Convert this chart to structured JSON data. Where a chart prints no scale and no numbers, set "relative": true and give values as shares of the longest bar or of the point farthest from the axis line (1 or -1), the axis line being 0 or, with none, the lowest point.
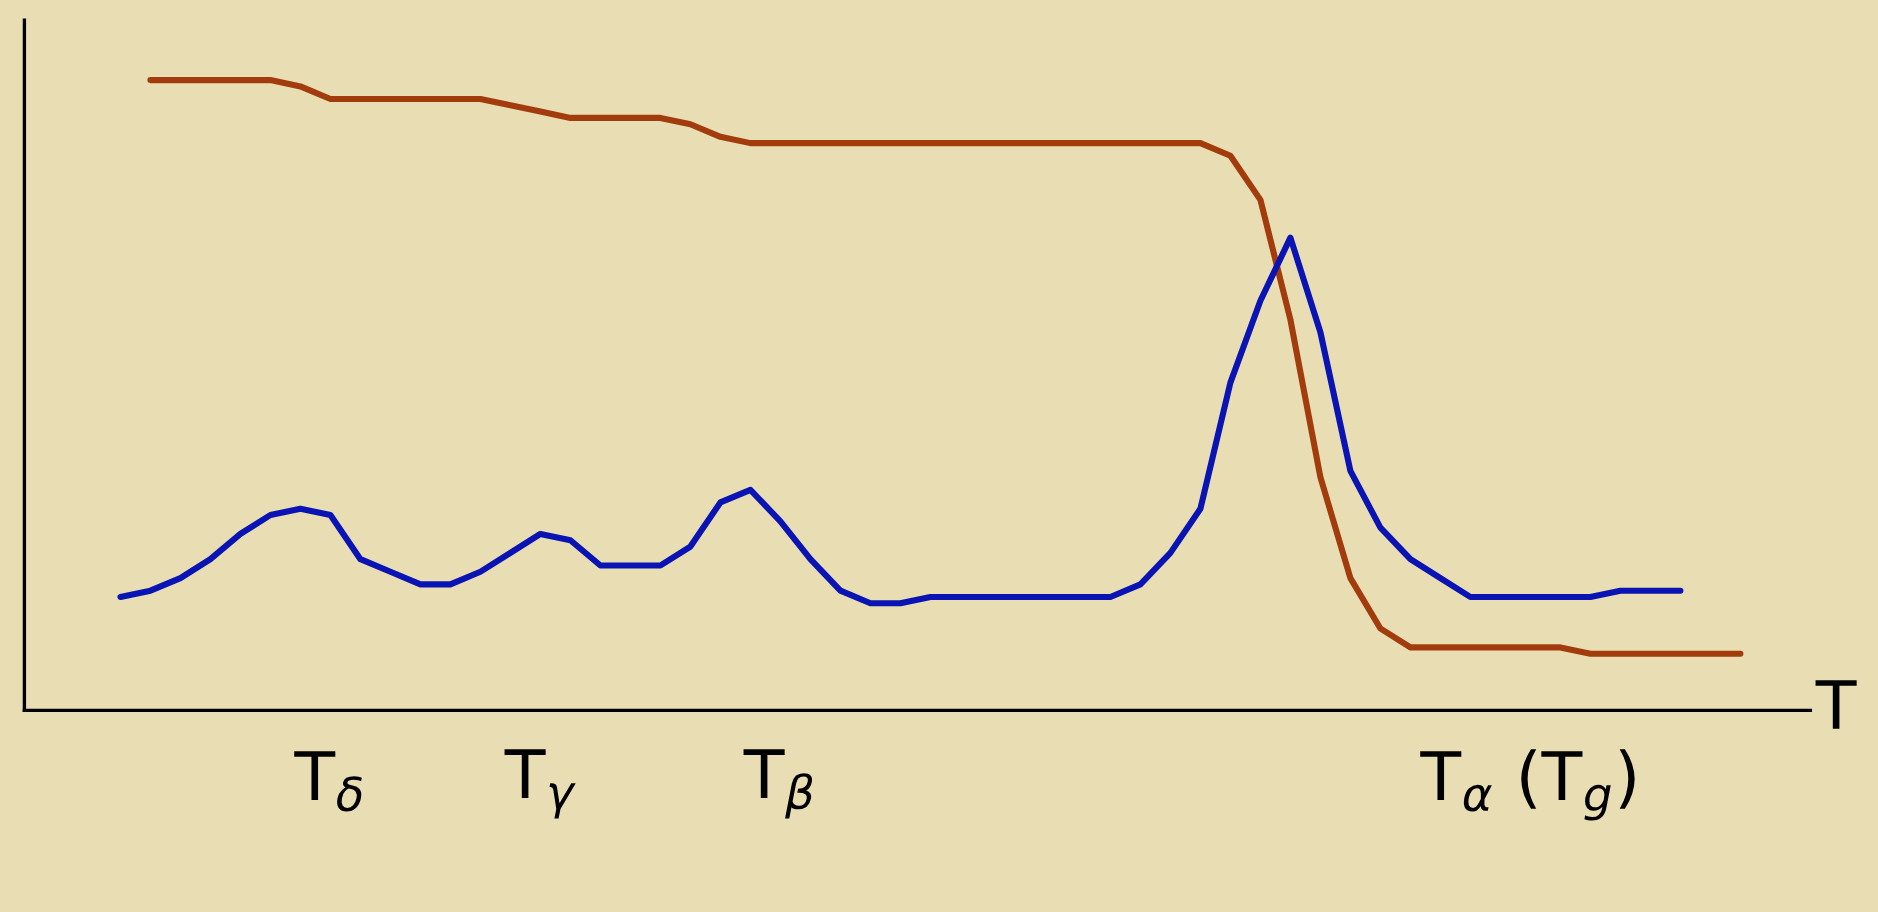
{
  "chart_data": {
    "type": "line",
    "relative": true,
    "xlabel": "T",
    "grid": false,
    "marker": "none",
    "line_style": "solid",
    "categories": [
      null,
      null,
      null,
      null,
      null,
      null,
      null,
      "T$_{δ}$",
      null,
      null,
      null,
      null,
      null,
      null,
      "T$_{γ}$",
      null,
      null,
      null,
      null,
      null,
      null,
      null,
      "T$_{β}$",
      null,
      null,
      null,
      null,
      null,
      null,
      null,
      null,
      null,
      null,
      null,
      null,
      null,
      null,
      null,
      null,
      null,
      null,
      null,
      null,
      null,
      null,
      null,
      null,
      "T$_{α}$ (T$_{g}$)",
      null,
      null,
      null,
      null,
      null,
      null,
      null
    ],
    "series": [
      {
        "color": "#a33c0c",
        "values": [
          null,
          1.0,
          1.0,
          1.0,
          1.0,
          1.0,
          0.99,
          0.97,
          0.97,
          0.97,
          0.97,
          0.97,
          0.97,
          0.96,
          0.95,
          0.94,
          0.94,
          0.94,
          0.94,
          0.93,
          0.91,
          0.9,
          0.9,
          0.9,
          0.9,
          0.9,
          0.9,
          0.9,
          0.9,
          0.9,
          0.9,
          0.9,
          0.9,
          0.9,
          0.9,
          0.9,
          0.9,
          0.88,
          0.81,
          0.62,
          0.37,
          0.21,
          0.13,
          0.1,
          0.1,
          0.1,
          0.1,
          0.1,
          0.1,
          0.09,
          0.09,
          0.09,
          0.09,
          0.09,
          0.09
        ]
      },
      {
        "color": "#0a14b4",
        "values": [
          0.18,
          0.19,
          0.21,
          0.24,
          0.28,
          0.31,
          0.32,
          0.31,
          0.24,
          0.22,
          0.2,
          0.2,
          0.22,
          0.25,
          0.28,
          0.27,
          0.23,
          0.23,
          0.23,
          0.26,
          0.33,
          0.35,
          0.3,
          0.24,
          0.19,
          0.17,
          0.17,
          0.18,
          0.18,
          0.18,
          0.18,
          0.18,
          0.18,
          0.18,
          0.2,
          0.25,
          0.32,
          0.52,
          0.65,
          0.75,
          0.6,
          0.38,
          0.29,
          0.24,
          0.21,
          0.18,
          0.18,
          0.18,
          0.18,
          0.18,
          0.19,
          0.19,
          0.19,
          null,
          null
        ]
      }
    ]
  }
}
